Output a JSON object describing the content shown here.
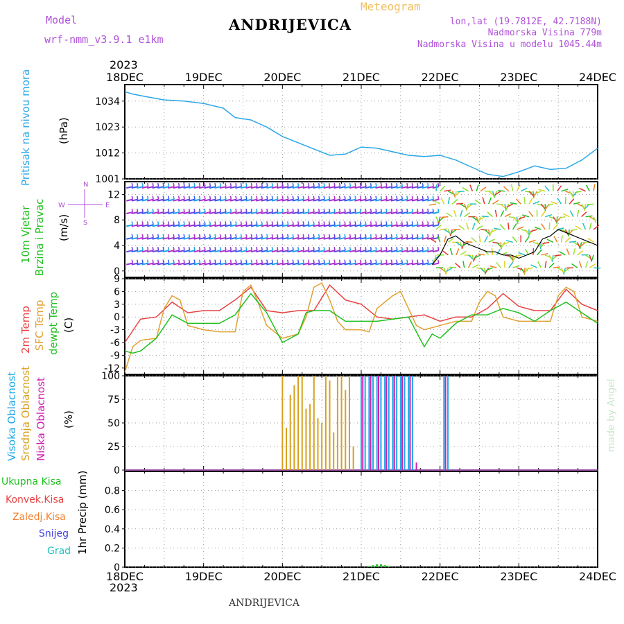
{
  "header": {
    "model_label": "Model",
    "model_name": "wrf-nmm_v3.9.1 e1km",
    "station_title": "ANDRIJEVICA",
    "meteogram_label": "Meteogram",
    "coords": "lon,lat (19.7812E, 42.7188N)",
    "elevation": "Nadmorska Visina 779m",
    "model_elevation": "Nadmorska Visina u modelu 1045.44m",
    "year": "2023"
  },
  "footer": {
    "station": "ANDRIJEVICA",
    "credit": "made by Angel"
  },
  "time_axis": {
    "labels": [
      "18DEC",
      "19DEC",
      "20DEC",
      "21DEC",
      "22DEC",
      "23DEC",
      "24DEC"
    ],
    "year": "2023"
  },
  "colors": {
    "pressure": "#2aa7e8",
    "temp2m": "#e84040",
    "sfc": "#e0a030",
    "dewpt": "#20c020",
    "high": "#20a8e8",
    "mid": "#d8a020",
    "low": "#d020b0",
    "purple": "#b052d8",
    "windline": "#000000"
  },
  "panel_labels": {
    "pressure": {
      "name": "Pritisak na nivou mora",
      "unit": "(hPa)"
    },
    "wind": {
      "name1": "10m Vjetar",
      "name2": "Brzina i Pravac",
      "unit": "(m/s)",
      "compass_n": "N",
      "compass_w": "W",
      "compass_e": "E",
      "compass_s": "S"
    },
    "temp": {
      "t2m": "2m Temp",
      "sfc": "SFC Temp",
      "dew": "dewpt Temp",
      "unit": "(C)"
    },
    "cloud": {
      "high": "Visoka Oblacnost",
      "mid": "Srednja Oblacnost",
      "low": "Niska Oblacnost",
      "unit": "(%)"
    },
    "precip": {
      "total": "Ukupna Kisa",
      "convective": "Konvek.Kisa",
      "freezing": "Zaledj.Kisa",
      "snow": "Snijeg",
      "hail": "Grad",
      "unit": "1hr Precip (mm)"
    }
  },
  "chart_data": [
    {
      "type": "line",
      "title": "Pritisak na nivou mora",
      "ylabel": "(hPa)",
      "ylim": [
        1001,
        1041
      ],
      "yticks": [
        1001,
        1012,
        1023,
        1034
      ],
      "x_unit": "days since 18DEC 00UTC",
      "series": [
        {
          "name": "Pritisak na nivou mora",
          "x": [
            0,
            0.1,
            0.25,
            0.5,
            0.75,
            1.0,
            1.25,
            1.4,
            1.6,
            1.8,
            2.0,
            2.3,
            2.6,
            2.8,
            3.0,
            3.2,
            3.4,
            3.6,
            3.8,
            4.0,
            4.2,
            4.4,
            4.6,
            4.8,
            5.0,
            5.2,
            5.4,
            5.6,
            5.8,
            6.0
          ],
          "y": [
            1038,
            1037,
            1036,
            1034.5,
            1034,
            1033,
            1031,
            1027,
            1026,
            1023,
            1019,
            1015,
            1011,
            1011.5,
            1014.5,
            1014,
            1012.5,
            1011,
            1010.5,
            1011,
            1009,
            1006,
            1003,
            1002,
            1004,
            1006.5,
            1005,
            1005.5,
            1009,
            1014
          ]
        }
      ]
    },
    {
      "type": "line",
      "title": "10m Vjetar",
      "ylabel": "(m/s)",
      "ylim": [
        -1,
        14
      ],
      "yticks": [
        0,
        4,
        8,
        12
      ],
      "series": [
        {
          "name": "wind speed",
          "x": [
            3.9,
            4.0,
            4.1,
            4.2,
            4.3,
            4.4,
            4.5,
            4.6,
            4.7,
            4.8,
            4.9,
            5.0,
            5.1,
            5.2,
            5.3,
            5.4,
            5.5,
            5.6,
            5.7,
            5.8,
            5.9,
            6.0
          ],
          "y": [
            1.0,
            2.5,
            5.0,
            5.5,
            4.5,
            4.0,
            3.5,
            3.0,
            3.0,
            2.5,
            2.5,
            2.0,
            2.5,
            3.0,
            5.0,
            5.5,
            6.5,
            6.0,
            5.5,
            5.0,
            4.5,
            4.0
          ]
        }
      ]
    },
    {
      "type": "line",
      "title": "",
      "ylabel": "(C)",
      "ylim": [
        -13.5,
        9
      ],
      "yticks": [
        -12,
        -9,
        -6,
        -3,
        0,
        3,
        6,
        9
      ],
      "series": [
        {
          "name": "2m Temp",
          "x": [
            0,
            0.2,
            0.4,
            0.6,
            0.8,
            1.0,
            1.2,
            1.4,
            1.6,
            1.8,
            2.0,
            2.2,
            2.4,
            2.6,
            2.8,
            3.0,
            3.2,
            3.4,
            3.6,
            3.8,
            4.0,
            4.2,
            4.4,
            4.6,
            4.8,
            5.0,
            5.2,
            5.4,
            5.6,
            5.8,
            6.0
          ],
          "y": [
            -6,
            -0.5,
            0,
            3.5,
            1,
            1.5,
            1.5,
            4,
            7,
            1.5,
            1,
            1.5,
            1.5,
            7.5,
            4,
            3,
            0,
            -0.5,
            0,
            0.5,
            -1,
            0,
            0,
            2,
            5.5,
            2.5,
            1.5,
            1.5,
            6.5,
            3,
            1.5
          ]
        },
        {
          "name": "SFC Temp",
          "x": [
            0,
            0.1,
            0.2,
            0.4,
            0.5,
            0.6,
            0.7,
            0.8,
            1.0,
            1.2,
            1.4,
            1.5,
            1.6,
            1.7,
            1.8,
            2.0,
            2.2,
            2.3,
            2.4,
            2.5,
            2.6,
            2.7,
            2.8,
            3.0,
            3.1,
            3.2,
            3.4,
            3.5,
            3.6,
            3.7,
            3.8,
            4.0,
            4.2,
            4.4,
            4.5,
            4.6,
            4.7,
            4.8,
            5.0,
            5.2,
            5.4,
            5.5,
            5.6,
            5.7,
            5.8,
            6.0
          ],
          "y": [
            -13,
            -7,
            -5.5,
            -5,
            2,
            5,
            4,
            -2,
            -3,
            -3.5,
            -3.5,
            6,
            7.5,
            3,
            -2,
            -5,
            -4,
            0,
            7,
            8,
            4,
            -1,
            -3,
            -3,
            -3.5,
            2,
            5,
            6,
            2,
            -2,
            -3,
            -2,
            -1,
            -1,
            3.5,
            6,
            5,
            0,
            -1,
            -1,
            -1,
            5,
            7,
            6,
            0,
            -1
          ]
        },
        {
          "name": "dewpt Temp",
          "x": [
            0,
            0.1,
            0.2,
            0.4,
            0.6,
            0.8,
            1.0,
            1.2,
            1.4,
            1.6,
            1.8,
            2.0,
            2.2,
            2.3,
            2.4,
            2.6,
            2.8,
            3.0,
            3.2,
            3.4,
            3.6,
            3.8,
            3.9,
            4.0,
            4.2,
            4.4,
            4.6,
            4.8,
            5.0,
            5.2,
            5.4,
            5.6,
            5.8,
            6.0
          ],
          "y": [
            -8,
            -8.5,
            -8,
            -5,
            0.5,
            -1.5,
            -1.5,
            -1.5,
            0.5,
            5.5,
            1,
            -6,
            -4,
            1,
            1.5,
            1.5,
            -1,
            -1,
            -1,
            -0.5,
            0,
            -7,
            -4,
            -5,
            -1.5,
            0.5,
            0.5,
            2,
            1,
            -1,
            1.5,
            3.5,
            1,
            -1.5
          ]
        }
      ]
    },
    {
      "type": "bar",
      "title": "",
      "ylabel": "(%)",
      "ylim": [
        0,
        100
      ],
      "yticks": [
        0,
        25,
        50,
        75,
        100
      ],
      "series": [
        {
          "name": "Srednja Oblacnost",
          "x": [
            2.0,
            2.05,
            2.1,
            2.15,
            2.2,
            2.25,
            2.3,
            2.35,
            2.4,
            2.45,
            2.5,
            2.55,
            2.6,
            2.65,
            2.7,
            2.75,
            2.8,
            2.85,
            2.9
          ],
          "y": [
            100,
            45,
            80,
            90,
            100,
            100,
            65,
            70,
            100,
            55,
            50,
            100,
            95,
            40,
            100,
            100,
            85,
            100,
            25
          ]
        },
        {
          "name": "Visoka Oblacnost",
          "x": [
            3.0,
            3.05,
            3.1,
            3.15,
            3.2,
            3.25,
            3.3,
            3.35,
            3.4,
            3.45,
            3.5,
            3.55,
            3.6,
            3.65,
            4.05,
            4.1
          ],
          "y": [
            100,
            100,
            100,
            100,
            100,
            100,
            100,
            100,
            100,
            100,
            100,
            100,
            100,
            100,
            100,
            100
          ]
        },
        {
          "name": "Niska Oblacnost",
          "x": [
            3.02,
            3.12,
            3.22,
            3.32,
            3.42,
            3.52,
            3.62,
            3.7,
            4.07
          ],
          "y": [
            100,
            100,
            100,
            100,
            100,
            100,
            100,
            8,
            100
          ]
        }
      ]
    },
    {
      "type": "bar",
      "title": "",
      "ylabel": "1hr Precip (mm)",
      "ylim": [
        0,
        1.0
      ],
      "yticks": [
        0,
        0.2,
        0.4,
        0.6,
        0.8
      ],
      "series": [
        {
          "name": "Ukupna Kisa",
          "x": [
            3.1,
            3.15,
            3.2,
            3.25,
            3.3,
            3.35
          ],
          "y": [
            0.01,
            0.02,
            0.03,
            0.03,
            0.02,
            0.01
          ]
        }
      ]
    }
  ]
}
